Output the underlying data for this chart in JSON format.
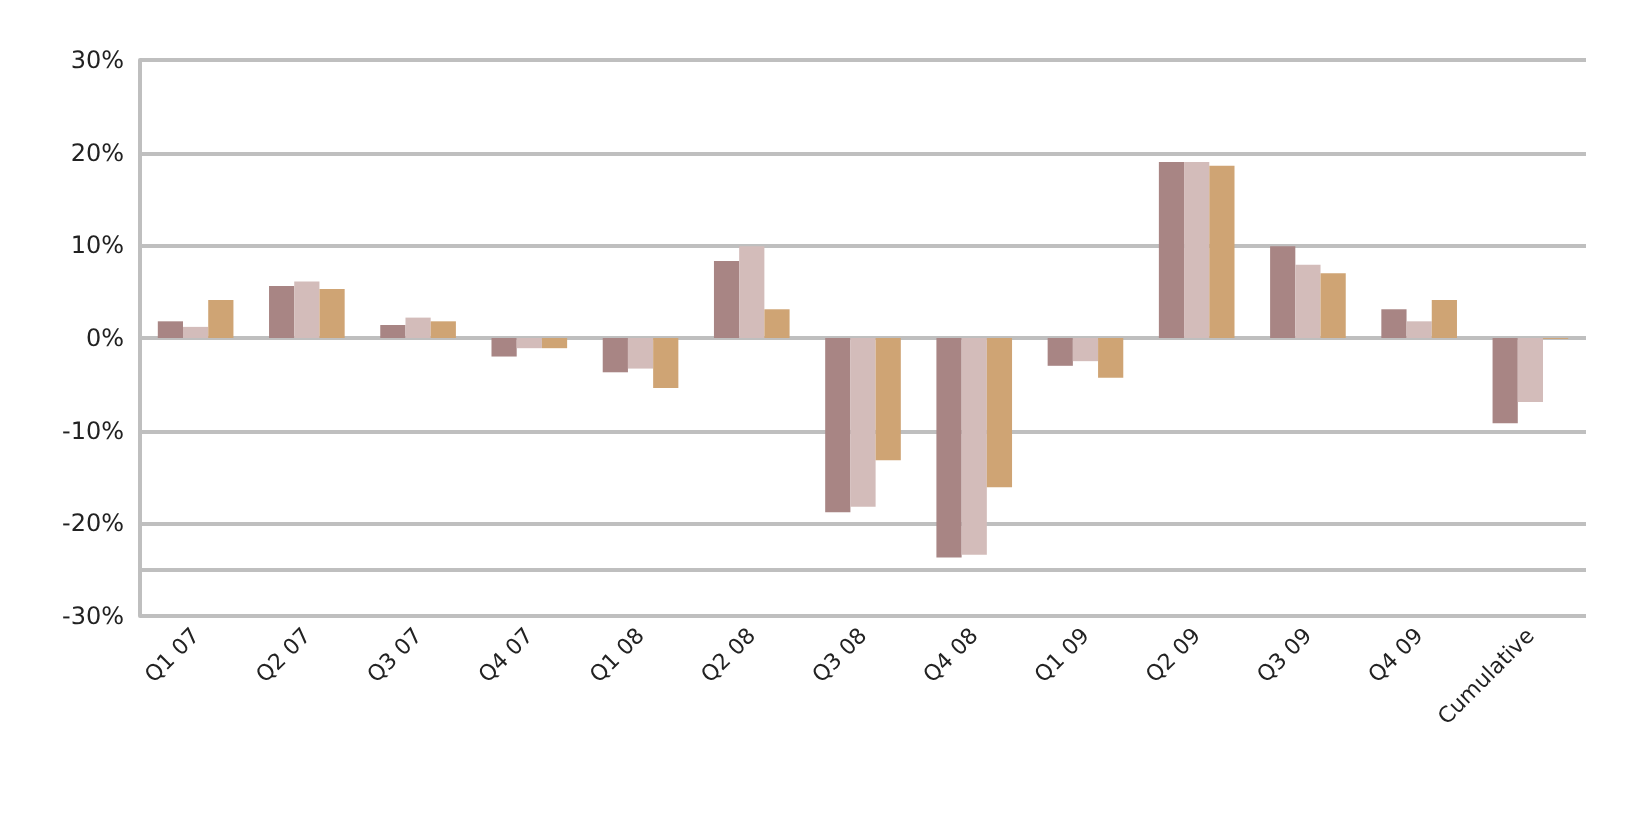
{
  "chart_data": {
    "type": "bar",
    "categories": [
      "Q1 07",
      "Q2 07",
      "Q3 07",
      "Q4 07",
      "Q1 08",
      "Q2 08",
      "Q3 08",
      "Q4 08",
      "Q1 09",
      "Q2 09",
      "Q3 09",
      "Q4 09",
      "Cumulative"
    ],
    "series": [
      {
        "color": "#a88584",
        "values": [
          1.8,
          5.6,
          1.4,
          -2.0,
          -3.7,
          8.3,
          -18.8,
          -23.7,
          -3.0,
          19.0,
          9.9,
          3.1,
          -9.2
        ]
      },
      {
        "color": "#d3bcba",
        "values": [
          1.2,
          6.1,
          2.2,
          -1.1,
          -3.3,
          9.9,
          -18.2,
          -23.4,
          -2.5,
          19.0,
          7.9,
          1.8,
          -6.9
        ]
      },
      {
        "color": "#cfa474",
        "values": [
          4.1,
          5.3,
          1.8,
          -1.1,
          -5.4,
          3.1,
          -13.2,
          -16.1,
          -4.3,
          18.6,
          7.0,
          4.1,
          -0.1
        ]
      }
    ],
    "ylim": [
      -30,
      30
    ],
    "yticks": [
      {
        "value": -30,
        "label": "-30%"
      },
      {
        "value": -20,
        "label": "-20%"
      },
      {
        "value": -10,
        "label": "-10%"
      },
      {
        "value": 0,
        "label": "0%"
      },
      {
        "value": 10,
        "label": "10%"
      },
      {
        "value": 20,
        "label": "20%"
      },
      {
        "value": 30,
        "label": "30%"
      }
    ],
    "ref_lines": [
      {
        "axis": "y",
        "value": -25,
        "color": "#bfbfbf"
      }
    ],
    "grid": "y"
  }
}
